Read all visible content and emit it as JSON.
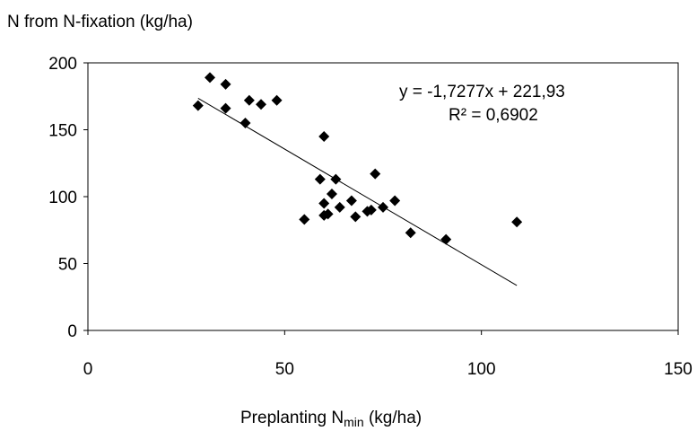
{
  "chart_data": {
    "type": "scatter",
    "title": "",
    "ylabel": "N from N-fixation (kg/ha)",
    "xlabel": {
      "prefix": "Preplanting N",
      "subscript": "min",
      "suffix": " (kg/ha)"
    },
    "xlim": [
      0,
      150
    ],
    "ylim": [
      0,
      200
    ],
    "x_ticks": [
      "0",
      "50",
      "100",
      "150"
    ],
    "y_ticks": [
      "0",
      "50",
      "100",
      "150",
      "200"
    ],
    "grid": false,
    "legend": "none",
    "marker": "diamond",
    "marker_color": "#000000",
    "series": [
      {
        "points": [
          {
            "x": 28,
            "y": 168
          },
          {
            "x": 31,
            "y": 189
          },
          {
            "x": 35,
            "y": 184
          },
          {
            "x": 35,
            "y": 166
          },
          {
            "x": 40,
            "y": 155
          },
          {
            "x": 41,
            "y": 172
          },
          {
            "x": 44,
            "y": 169
          },
          {
            "x": 48,
            "y": 172
          },
          {
            "x": 55,
            "y": 83
          },
          {
            "x": 59,
            "y": 113
          },
          {
            "x": 60,
            "y": 145
          },
          {
            "x": 60,
            "y": 95
          },
          {
            "x": 60,
            "y": 86
          },
          {
            "x": 61,
            "y": 87
          },
          {
            "x": 62,
            "y": 102
          },
          {
            "x": 63,
            "y": 113
          },
          {
            "x": 64,
            "y": 92
          },
          {
            "x": 67,
            "y": 97
          },
          {
            "x": 68,
            "y": 85
          },
          {
            "x": 71,
            "y": 89
          },
          {
            "x": 72,
            "y": 90
          },
          {
            "x": 73,
            "y": 117
          },
          {
            "x": 75,
            "y": 92
          },
          {
            "x": 78,
            "y": 97
          },
          {
            "x": 82,
            "y": 73
          },
          {
            "x": 91,
            "y": 68
          },
          {
            "x": 109,
            "y": 81
          }
        ]
      }
    ],
    "trendline": {
      "type": "linear",
      "slope": -1.7277,
      "intercept": 221.93,
      "x_range": [
        28,
        109
      ],
      "color": "#000000"
    },
    "annotations": {
      "equation": "y = -1,7277x  + 221,93",
      "r_squared": "R² = 0,6902"
    }
  }
}
